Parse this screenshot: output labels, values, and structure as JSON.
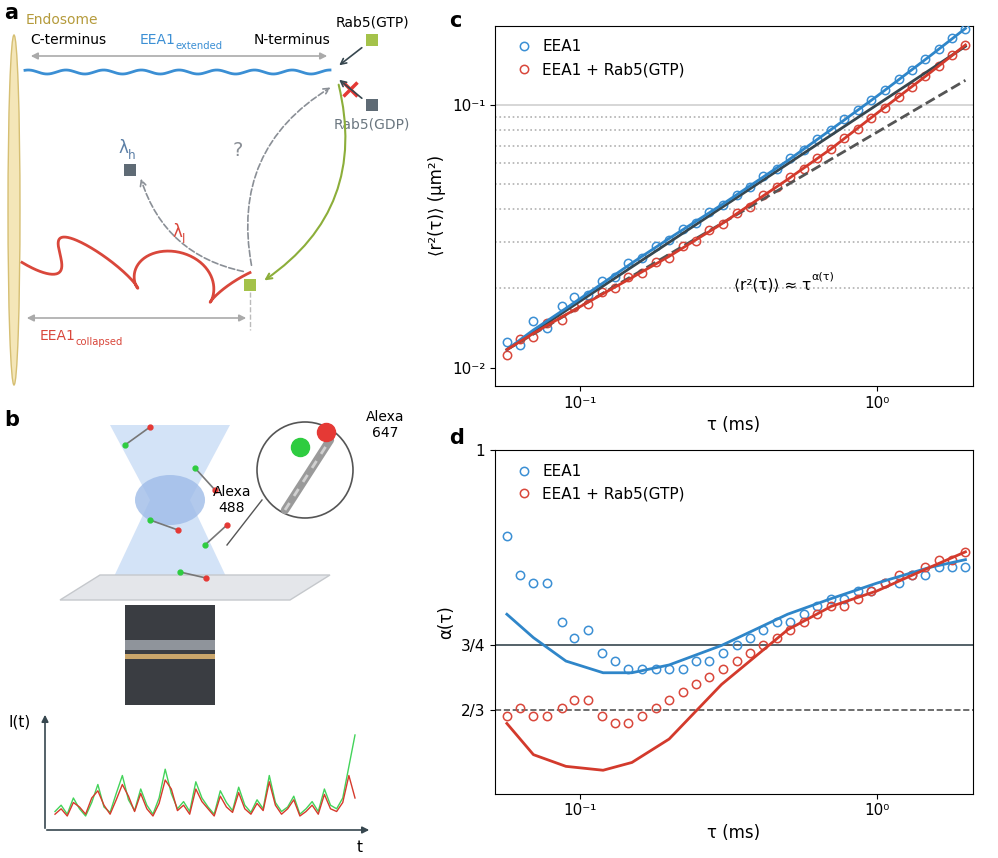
{
  "panel_labels": [
    "a",
    "b",
    "c",
    "d"
  ],
  "diagram_a": {
    "endosome": "Endosome",
    "c_terminus": "C-terminus",
    "n_terminus": "N-terminus",
    "extended": {
      "text": "EEA1",
      "subscript": "extended"
    },
    "collapsed": {
      "text": "EEA1",
      "subscript": "collapsed"
    },
    "rab5_gtp": "Rab5(GTP)",
    "rab5_gdp": "Rab5(GDP)",
    "lambda_h": {
      "text": "λ",
      "subscript": "h"
    },
    "lambda_l": {
      "text": "λ",
      "subscript": "l"
    },
    "question": "?"
  },
  "diagram_b": {
    "dye_green": [
      "Alexa",
      "488"
    ],
    "dye_red": [
      "Alexa",
      "647"
    ],
    "y_label": "I(t)",
    "x_label": "t",
    "trace": {
      "green": [
        0.15,
        0.22,
        0.12,
        0.3,
        0.18,
        0.1,
        0.25,
        0.45,
        0.2,
        0.14,
        0.35,
        0.55,
        0.28,
        0.16,
        0.4,
        0.22,
        0.12,
        0.3,
        0.62,
        0.35,
        0.18,
        0.26,
        0.15,
        0.48,
        0.3,
        0.2,
        0.12,
        0.38,
        0.25,
        0.16,
        0.42,
        0.22,
        0.14,
        0.28,
        0.18,
        0.55,
        0.25,
        0.15,
        0.2,
        0.32,
        0.12,
        0.18,
        0.26,
        0.15,
        0.4,
        0.22,
        0.18,
        0.3,
        0.65,
        1.0
      ],
      "red": [
        0.12,
        0.18,
        0.1,
        0.25,
        0.2,
        0.12,
        0.3,
        0.38,
        0.22,
        0.12,
        0.28,
        0.45,
        0.32,
        0.15,
        0.35,
        0.18,
        0.1,
        0.24,
        0.5,
        0.4,
        0.16,
        0.22,
        0.12,
        0.4,
        0.26,
        0.18,
        0.1,
        0.32,
        0.2,
        0.14,
        0.36,
        0.18,
        0.12,
        0.24,
        0.16,
        0.48,
        0.22,
        0.12,
        0.18,
        0.28,
        0.1,
        0.15,
        0.22,
        0.12,
        0.34,
        0.18,
        0.15,
        0.25,
        0.55,
        0.3
      ]
    }
  },
  "chart_data": [
    {
      "type": "scatter",
      "log": true,
      "x_label": "τ (ms)",
      "y_label": "⟨r²(τ)⟩ (μm²)",
      "xlim": [
        0.052,
        2.1
      ],
      "ylim": [
        0.0085,
        0.2
      ],
      "xticks": [
        {
          "value": 0.1,
          "label": "10⁻¹"
        },
        {
          "value": 1,
          "label": "10⁰"
        }
      ],
      "yticks": [
        {
          "value": 0.01,
          "label": "10⁻²"
        },
        {
          "value": 0.1,
          "label": "10⁻¹"
        }
      ],
      "legend": "upper left",
      "annotation": {
        "text": "⟨r²(τ)⟩ ≈ τ",
        "superscript": "α(τ)"
      },
      "reference_lines": [
        {
          "value": 0.1,
          "line_style": "solid",
          "color": "#cfcfcf"
        },
        {
          "value": 0.09,
          "line_style": "dotted",
          "color": "#b0b0b0"
        },
        {
          "value": 0.08,
          "line_style": "dotted",
          "color": "#b0b0b0"
        },
        {
          "value": 0.07,
          "line_style": "dotted",
          "color": "#b0b0b0"
        },
        {
          "value": 0.06,
          "line_style": "dotted",
          "color": "#b0b0b0"
        },
        {
          "value": 0.05,
          "line_style": "dotted",
          "color": "#b0b0b0"
        },
        {
          "value": 0.04,
          "line_style": "dotted",
          "color": "#b0b0b0"
        },
        {
          "value": 0.03,
          "line_style": "dotted",
          "color": "#b0b0b0"
        },
        {
          "value": 0.02,
          "line_style": "dotted",
          "color": "#b0b0b0"
        }
      ],
      "series": [
        {
          "name": "EEA1",
          "color": "#3b8fd4",
          "marker": "circle",
          "x": [
            0.057,
            0.063,
            0.07,
            0.078,
            0.087,
            0.096,
            0.107,
            0.119,
            0.132,
            0.146,
            0.162,
            0.18,
            0.2,
            0.222,
            0.246,
            0.273,
            0.303,
            0.337,
            0.374,
            0.415,
            0.46,
            0.511,
            0.567,
            0.63,
            0.699,
            0.776,
            0.861,
            0.956,
            1.06,
            1.18,
            1.31,
            1.45,
            1.61,
            1.79,
            1.98
          ],
          "values": [
            0.0125,
            0.0122,
            0.015,
            0.0141,
            0.0172,
            0.0185,
            0.0189,
            0.0214,
            0.0222,
            0.0251,
            0.0262,
            0.0291,
            0.0306,
            0.0338,
            0.0356,
            0.0392,
            0.0415,
            0.0455,
            0.0485,
            0.0535,
            0.057,
            0.0628,
            0.0672,
            0.0742,
            0.08,
            0.088,
            0.0952,
            0.1045,
            0.1135,
            0.125,
            0.136,
            0.1495,
            0.163,
            0.179,
            0.195
          ]
        },
        {
          "name": "EEA1 + Rab5(GTP)",
          "color": "#d9473b",
          "marker": "circle",
          "x": [
            0.057,
            0.063,
            0.07,
            0.078,
            0.087,
            0.096,
            0.107,
            0.119,
            0.132,
            0.146,
            0.162,
            0.18,
            0.2,
            0.222,
            0.246,
            0.273,
            0.303,
            0.337,
            0.374,
            0.415,
            0.46,
            0.511,
            0.567,
            0.63,
            0.699,
            0.776,
            0.861,
            0.956,
            1.06,
            1.18,
            1.31,
            1.45,
            1.61,
            1.79,
            1.98
          ],
          "values": [
            0.0112,
            0.0128,
            0.0131,
            0.0148,
            0.0152,
            0.017,
            0.0174,
            0.0194,
            0.02,
            0.0221,
            0.0229,
            0.0252,
            0.0262,
            0.0289,
            0.0304,
            0.0334,
            0.0352,
            0.0386,
            0.041,
            0.0452,
            0.0485,
            0.0532,
            0.057,
            0.0628,
            0.068,
            0.0748,
            0.081,
            0.089,
            0.097,
            0.107,
            0.1165,
            0.1285,
            0.14,
            0.1545,
            0.169
          ]
        },
        {
          "type": "line",
          "color": "#37474f",
          "line_style": "solid",
          "x": [
            0.057,
            1.98
          ],
          "values": [
            0.0117,
            0.167
          ]
        },
        {
          "type": "line",
          "color": "#555555",
          "line_style": "dashed",
          "x": [
            0.057,
            1.98
          ],
          "values": [
            0.0117,
            0.124
          ]
        },
        {
          "type": "line",
          "color": "#2f86c9",
          "line_style": "solid",
          "x": [
            0.057,
            0.07,
            0.09,
            0.12,
            0.15,
            0.2,
            0.3,
            0.5,
            0.7,
            1.0,
            1.5,
            1.98
          ],
          "values": [
            0.0117,
            0.0139,
            0.0168,
            0.021,
            0.025,
            0.031,
            0.0416,
            0.0613,
            0.0805,
            0.108,
            0.153,
            0.1954
          ]
        },
        {
          "type": "line",
          "color": "#d33a2c",
          "line_style": "solid",
          "x": [
            0.057,
            0.07,
            0.09,
            0.12,
            0.15,
            0.2,
            0.3,
            0.5,
            0.7,
            1.0,
            1.5,
            1.98
          ],
          "values": [
            0.0117,
            0.0135,
            0.0159,
            0.0191,
            0.022,
            0.0265,
            0.0352,
            0.052,
            0.068,
            0.093,
            0.132,
            0.169
          ]
        }
      ]
    },
    {
      "type": "scatter",
      "log": "x",
      "x_label": "τ (ms)",
      "y_label": "α(τ)",
      "xlim": [
        0.052,
        2.1
      ],
      "ylim": [
        0.56,
        1.0
      ],
      "xticks": [
        {
          "value": 0.1,
          "label": "10⁻¹"
        },
        {
          "value": 1,
          "label": "10⁰"
        }
      ],
      "yticks": [
        {
          "value": 0.6667,
          "label": "2/3"
        },
        {
          "value": 0.75,
          "label": "3/4"
        },
        1
      ],
      "legend": "upper left",
      "reference_lines": [
        {
          "value": 0.75,
          "line_style": "solid",
          "color": "#37474f"
        },
        {
          "value": 0.6667,
          "line_style": "dashed",
          "color": "#555555"
        }
      ],
      "series": [
        {
          "name": "EEA1",
          "color": "#3b8fd4",
          "marker": "circle",
          "x": [
            0.057,
            0.063,
            0.07,
            0.078,
            0.087,
            0.096,
            0.107,
            0.119,
            0.132,
            0.146,
            0.162,
            0.18,
            0.2,
            0.222,
            0.246,
            0.273,
            0.303,
            0.337,
            0.374,
            0.415,
            0.46,
            0.511,
            0.567,
            0.63,
            0.699,
            0.776,
            0.861,
            0.956,
            1.06,
            1.18,
            1.31,
            1.45,
            1.61,
            1.79,
            1.98
          ],
          "values": [
            0.89,
            0.84,
            0.83,
            0.83,
            0.78,
            0.76,
            0.77,
            0.74,
            0.73,
            0.72,
            0.72,
            0.72,
            0.72,
            0.72,
            0.73,
            0.73,
            0.74,
            0.75,
            0.76,
            0.77,
            0.78,
            0.78,
            0.79,
            0.8,
            0.81,
            0.81,
            0.82,
            0.82,
            0.83,
            0.83,
            0.84,
            0.84,
            0.85,
            0.85,
            0.85
          ]
        },
        {
          "name": "EEA1 + Rab5(GTP)",
          "color": "#d9473b",
          "marker": "circle",
          "x": [
            0.057,
            0.063,
            0.07,
            0.078,
            0.087,
            0.096,
            0.107,
            0.119,
            0.132,
            0.146,
            0.162,
            0.18,
            0.2,
            0.222,
            0.246,
            0.273,
            0.303,
            0.337,
            0.374,
            0.415,
            0.46,
            0.511,
            0.567,
            0.63,
            0.699,
            0.776,
            0.861,
            0.956,
            1.06,
            1.18,
            1.31,
            1.45,
            1.61,
            1.79,
            1.98
          ],
          "values": [
            0.66,
            0.67,
            0.66,
            0.66,
            0.67,
            0.68,
            0.68,
            0.66,
            0.65,
            0.65,
            0.66,
            0.67,
            0.68,
            0.69,
            0.7,
            0.71,
            0.72,
            0.73,
            0.74,
            0.75,
            0.76,
            0.77,
            0.78,
            0.79,
            0.8,
            0.8,
            0.81,
            0.82,
            0.83,
            0.84,
            0.84,
            0.85,
            0.86,
            0.86,
            0.87
          ]
        },
        {
          "type": "line",
          "color": "#2f86c9",
          "line_style": "solid",
          "x": [
            0.057,
            0.07,
            0.09,
            0.12,
            0.15,
            0.2,
            0.3,
            0.5,
            0.7,
            1.0,
            1.5,
            1.98
          ],
          "values": [
            0.79,
            0.76,
            0.73,
            0.715,
            0.715,
            0.725,
            0.75,
            0.79,
            0.81,
            0.83,
            0.85,
            0.86
          ]
        },
        {
          "type": "line",
          "color": "#d33a2c",
          "line_style": "solid",
          "x": [
            0.057,
            0.07,
            0.09,
            0.12,
            0.15,
            0.2,
            0.3,
            0.5,
            0.7,
            1.0,
            1.5,
            1.98
          ],
          "values": [
            0.65,
            0.61,
            0.595,
            0.59,
            0.6,
            0.63,
            0.7,
            0.77,
            0.8,
            0.82,
            0.85,
            0.87
          ]
        }
      ]
    }
  ]
}
